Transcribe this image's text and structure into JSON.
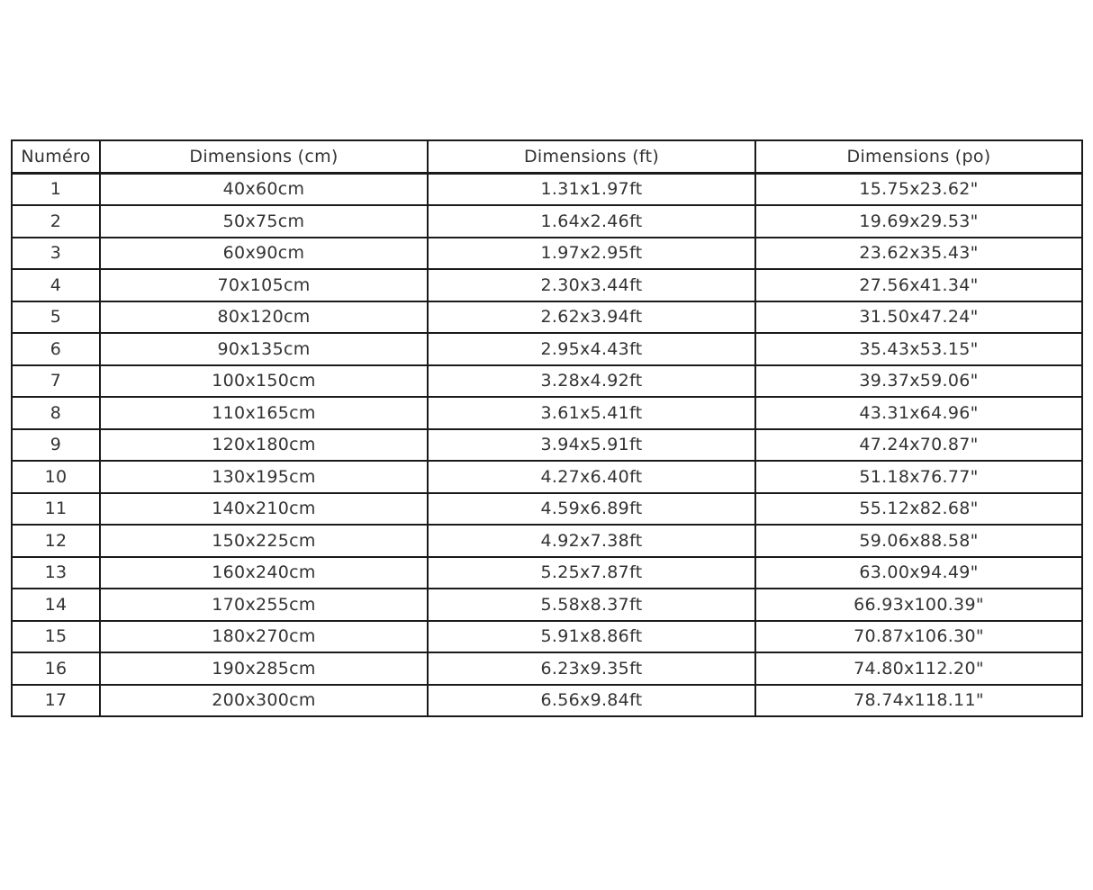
{
  "page": {
    "background_color": "#ffffff",
    "border_color": "#1a1a1a",
    "text_color": "#333333"
  },
  "chart_data": {
    "type": "table",
    "title": "",
    "columns": [
      "Numéro",
      "Dimensions (cm)",
      "Dimensions (ft)",
      "Dimensions (po)"
    ],
    "rows": [
      [
        "1",
        "40x60cm",
        "1.31x1.97ft",
        "15.75x23.62\""
      ],
      [
        "2",
        "50x75cm",
        "1.64x2.46ft",
        "19.69x29.53\""
      ],
      [
        "3",
        "60x90cm",
        "1.97x2.95ft",
        "23.62x35.43\""
      ],
      [
        "4",
        "70x105cm",
        "2.30x3.44ft",
        "27.56x41.34\""
      ],
      [
        "5",
        "80x120cm",
        "2.62x3.94ft",
        "31.50x47.24\""
      ],
      [
        "6",
        "90x135cm",
        "2.95x4.43ft",
        "35.43x53.15\""
      ],
      [
        "7",
        "100x150cm",
        "3.28x4.92ft",
        "39.37x59.06\""
      ],
      [
        "8",
        "110x165cm",
        "3.61x5.41ft",
        "43.31x64.96\""
      ],
      [
        "9",
        "120x180cm",
        "3.94x5.91ft",
        "47.24x70.87\""
      ],
      [
        "10",
        "130x195cm",
        "4.27x6.40ft",
        "51.18x76.77\""
      ],
      [
        "11",
        "140x210cm",
        "4.59x6.89ft",
        "55.12x82.68\""
      ],
      [
        "12",
        "150x225cm",
        "4.92x7.38ft",
        "59.06x88.58\""
      ],
      [
        "13",
        "160x240cm",
        "5.25x7.87ft",
        "63.00x94.49\""
      ],
      [
        "14",
        "170x255cm",
        "5.58x8.37ft",
        "66.93x100.39\""
      ],
      [
        "15",
        "180x270cm",
        "5.91x8.86ft",
        "70.87x106.30\""
      ],
      [
        "16",
        "190x285cm",
        "6.23x9.35ft",
        "74.80x112.20\""
      ],
      [
        "17",
        "200x300cm",
        "6.56x9.84ft",
        "78.74x118.11\""
      ]
    ]
  }
}
